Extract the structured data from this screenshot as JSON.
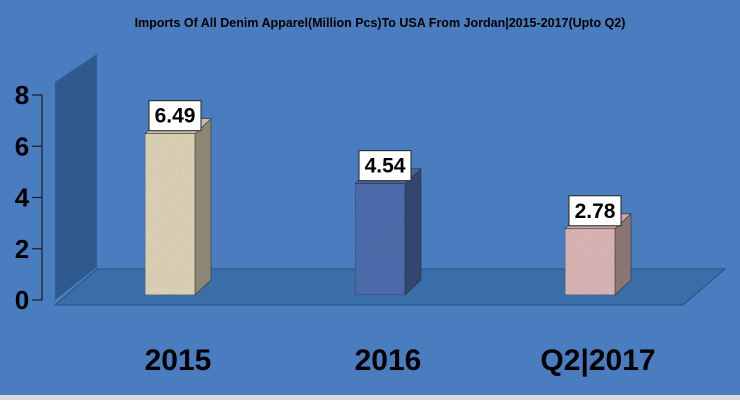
{
  "chart_data": {
    "type": "bar",
    "title": "Imports Of All Denim Apparel(Million Pcs)To USA From Jordan|2015-2017(Upto Q2)",
    "categories": [
      "2015",
      "2016",
      "Q2|2017"
    ],
    "values": [
      6.49,
      4.54,
      2.78
    ],
    "data_labels": [
      "6.49",
      "4.54",
      "2.78"
    ],
    "yticks": [
      0,
      2,
      4,
      6,
      8
    ],
    "ylim": [
      0,
      8
    ],
    "xlabel": "",
    "ylabel": "",
    "grid": false,
    "legend": "none",
    "three_d": true
  },
  "colors": {
    "background": "#4a7dbf",
    "wall": "#2f5a8e",
    "floor": "#3a6ea8",
    "bar_2015": "#ebe0c2",
    "bar_2016": "#5574b8",
    "bar_2017": "#e8c2c2",
    "axis_text": "#000000"
  }
}
